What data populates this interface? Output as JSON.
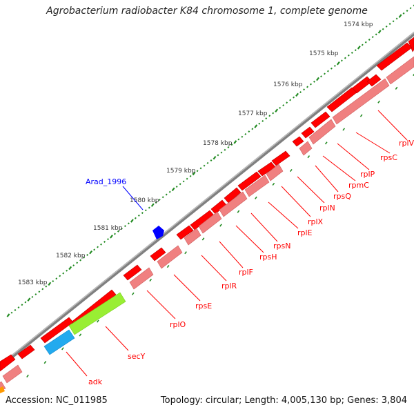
{
  "title": "Agrobacterium radiobacter K84 chromosome 1, complete genome",
  "accession": "Accession: NC_011985",
  "summary": "Topology: circular; Length: 4,005,130 bp; Genes: 3,804",
  "kbp_labels": [
    "1574 kbp",
    "1575 kbp",
    "1576 kbp",
    "1577 kbp",
    "1578 kbp",
    "1579 kbp",
    "1580 kbp",
    "1581 kbp",
    "1582 kbp",
    "1583 kbp"
  ],
  "feature_label": "Arad_1996",
  "gene_labels": [
    "rplV",
    "rpsC",
    "rplP",
    "rpmC",
    "rpsQ",
    "rplN",
    "rplX",
    "rplE",
    "rpsN",
    "rpsH",
    "rplF",
    "rplR",
    "rpsE",
    "rplO",
    "secY",
    "adk"
  ],
  "colors": {
    "backbone": "#808080",
    "gene_cds": "#ff0000",
    "gene_cds_light": "#f08080",
    "leader_line": "#ff0000",
    "other_feature": "#0000ff",
    "tick": "#228b22",
    "secY_feature": "#99ee33",
    "adk_feature": "#22aaee"
  }
}
